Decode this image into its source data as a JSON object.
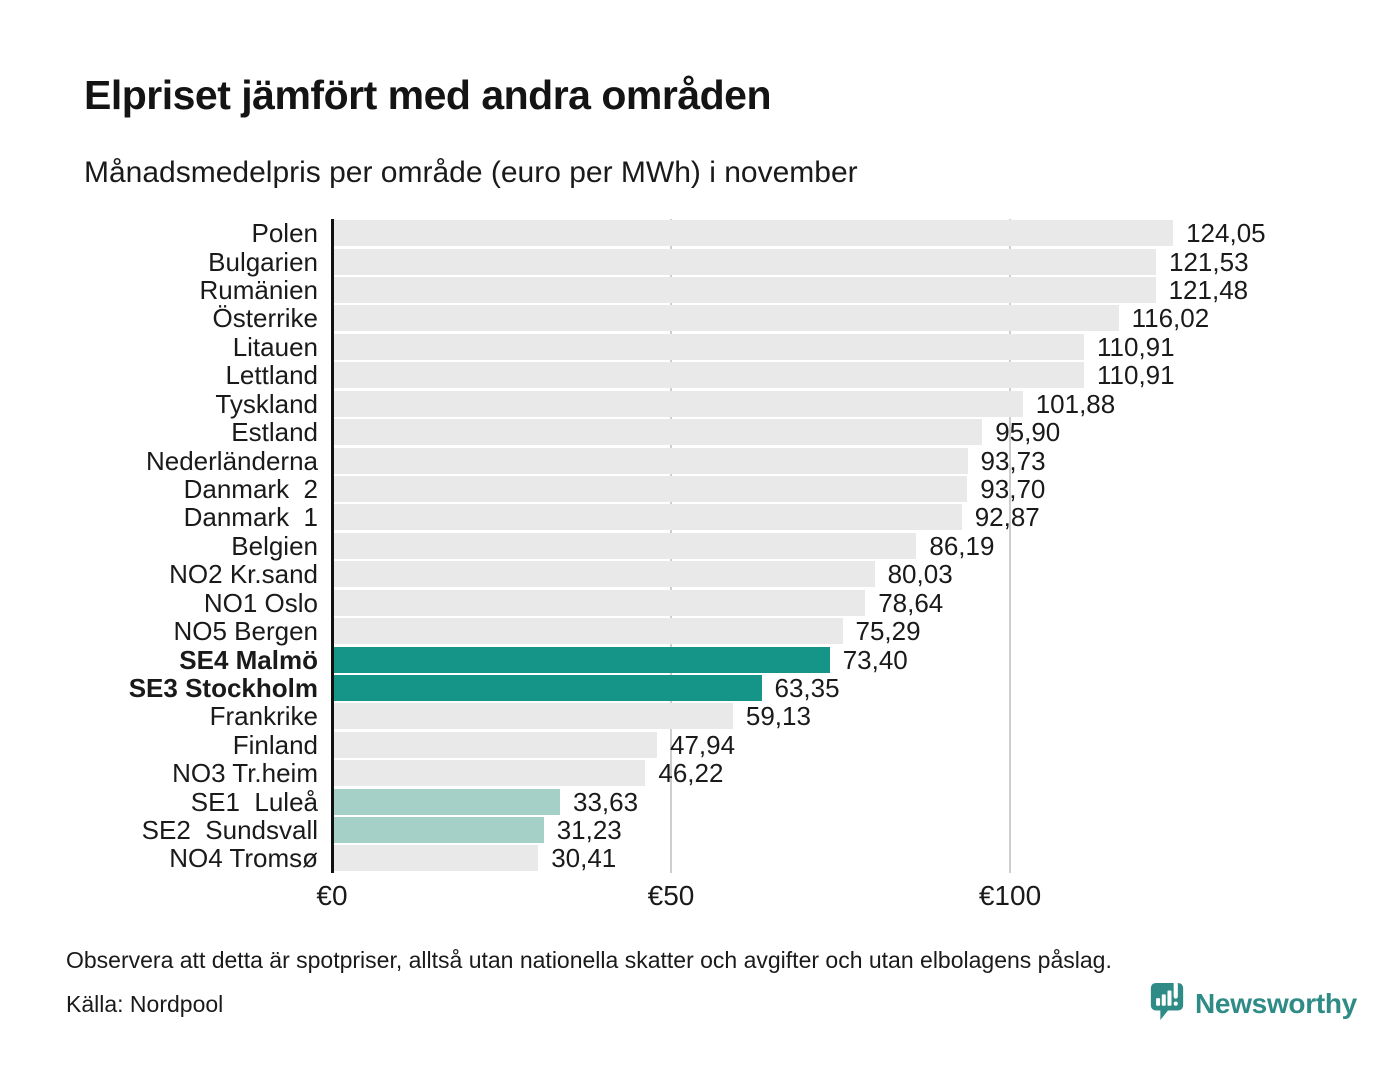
{
  "title": "Elpriset jämfört med andra områden",
  "subtitle": "Månadsmedelpris per område (euro per MWh) i november",
  "footer": {
    "note": "Observera att detta är spotpriser, alltså utan nationella skatter och avgifter och utan elbolagens påslag.",
    "source": "Källa: Nordpool",
    "logo_text": "Newsworthy",
    "logo_icon": "newsworthy-speech-bubble-chart-icon"
  },
  "colors": {
    "text": "#1a1a1a",
    "bar_default": "#e9e9e9",
    "bar_highlight_dark": "#159488",
    "bar_highlight_light": "#a4d0c8",
    "gridline": "#cccfd2",
    "axis": "#111111",
    "logo_teal": "#2f8b85"
  },
  "chart_data": {
    "type": "bar",
    "orientation": "horizontal",
    "title": "Elpriset jämfört med andra områden",
    "subtitle": "Månadsmedelpris per område (euro per MWh) i november",
    "unit": "euro per MWh",
    "xlabel": "",
    "ylabel": "",
    "xlim": [
      0,
      145
    ],
    "grid": "vertical",
    "legend": "none",
    "x_ticks": [
      {
        "label": "€0",
        "value": 0
      },
      {
        "label": "€50",
        "value": 50
      },
      {
        "label": "€100",
        "value": 100
      }
    ],
    "rows": [
      {
        "label": "Polen",
        "value": 124.05,
        "display": "124,05",
        "style": "default",
        "bold": false
      },
      {
        "label": "Bulgarien",
        "value": 121.53,
        "display": "121,53",
        "style": "default",
        "bold": false
      },
      {
        "label": "Rumänien",
        "value": 121.48,
        "display": "121,48",
        "style": "default",
        "bold": false
      },
      {
        "label": "Österrike",
        "value": 116.02,
        "display": "116,02",
        "style": "default",
        "bold": false
      },
      {
        "label": "Litauen",
        "value": 110.91,
        "display": "110,91",
        "style": "default",
        "bold": false
      },
      {
        "label": "Lettland",
        "value": 110.91,
        "display": "110,91",
        "style": "default",
        "bold": false
      },
      {
        "label": "Tyskland",
        "value": 101.88,
        "display": "101,88",
        "style": "default",
        "bold": false
      },
      {
        "label": "Estland",
        "value": 95.9,
        "display": "95,90",
        "style": "default",
        "bold": false
      },
      {
        "label": "Nederländerna",
        "value": 93.73,
        "display": "93,73",
        "style": "default",
        "bold": false
      },
      {
        "label": "Danmark  2",
        "value": 93.7,
        "display": "93,70",
        "style": "default",
        "bold": false
      },
      {
        "label": "Danmark  1",
        "value": 92.87,
        "display": "92,87",
        "style": "default",
        "bold": false
      },
      {
        "label": "Belgien",
        "value": 86.19,
        "display": "86,19",
        "style": "default",
        "bold": false
      },
      {
        "label": "NO2 Kr.sand",
        "value": 80.03,
        "display": "80,03",
        "style": "default",
        "bold": false
      },
      {
        "label": "NO1 Oslo",
        "value": 78.64,
        "display": "78,64",
        "style": "default",
        "bold": false
      },
      {
        "label": "NO5 Bergen",
        "value": 75.29,
        "display": "75,29",
        "style": "default",
        "bold": false
      },
      {
        "label": "SE4 Malmö",
        "value": 73.4,
        "display": "73,40",
        "style": "dark",
        "bold": true
      },
      {
        "label": "SE3 Stockholm",
        "value": 63.35,
        "display": "63,35",
        "style": "dark",
        "bold": true
      },
      {
        "label": "Frankrike",
        "value": 59.13,
        "display": "59,13",
        "style": "default",
        "bold": false
      },
      {
        "label": "Finland",
        "value": 47.94,
        "display": "47,94",
        "style": "default",
        "bold": false
      },
      {
        "label": "NO3 Tr.heim",
        "value": 46.22,
        "display": "46,22",
        "style": "default",
        "bold": false
      },
      {
        "label": "SE1  Luleå",
        "value": 33.63,
        "display": "33,63",
        "style": "light",
        "bold": false
      },
      {
        "label": "SE2  Sundsvall",
        "value": 31.23,
        "display": "31,23",
        "style": "light",
        "bold": false
      },
      {
        "label": "NO4 Tromsø",
        "value": 30.41,
        "display": "30,41",
        "style": "default",
        "bold": false
      }
    ]
  }
}
